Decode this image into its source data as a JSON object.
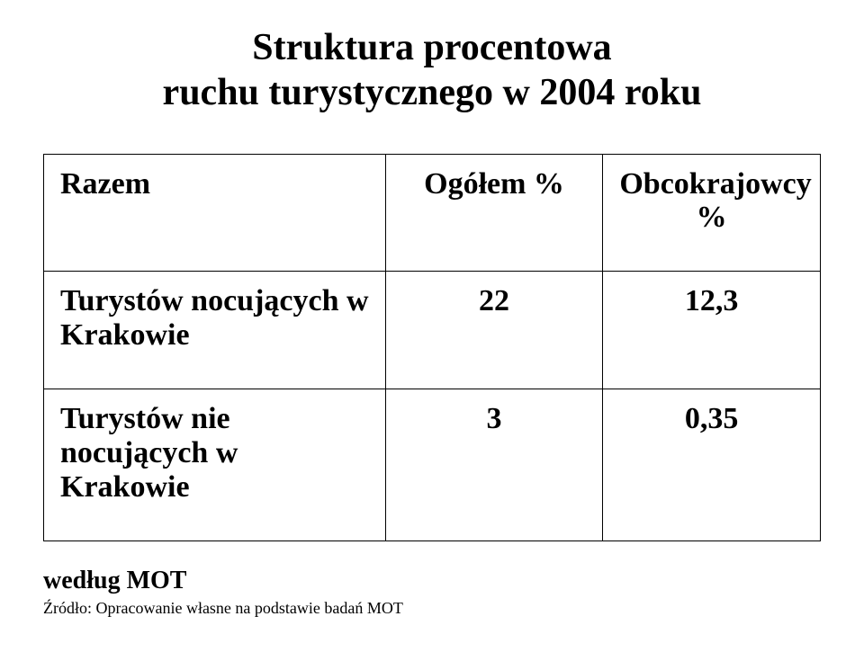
{
  "title": {
    "line1": "Struktura procentowa",
    "line2": "ruchu turystycznego w 2004 roku",
    "fontsize": 42,
    "fontweight": "bold",
    "color": "#000000"
  },
  "table": {
    "type": "table",
    "border_color": "#000000",
    "background_color": "#ffffff",
    "header_fontsize": 34,
    "body_fontsize": 34,
    "columns": [
      {
        "label": "Razem",
        "align": "left",
        "width_pct": 44
      },
      {
        "label": "Ogółem %",
        "align": "center",
        "width_pct": 28
      },
      {
        "label_line1": "Obcokrajowcy",
        "label_line2": "%",
        "align": "center",
        "width_pct": 28
      }
    ],
    "rows": [
      {
        "label": "Turystów nocujących w Krakowie",
        "ogolem": "22",
        "obco": "12,3"
      },
      {
        "label": "Turystów nie nocujących w Krakowie",
        "ogolem": "3",
        "obco": "0,35"
      }
    ]
  },
  "footer": {
    "note": "według MOT",
    "note_fontsize": 28,
    "note_fontweight": "bold",
    "source": "Źródło: Opracowanie własne na podstawie badań MOT",
    "source_fontsize": 18,
    "text_color": "#000000"
  }
}
